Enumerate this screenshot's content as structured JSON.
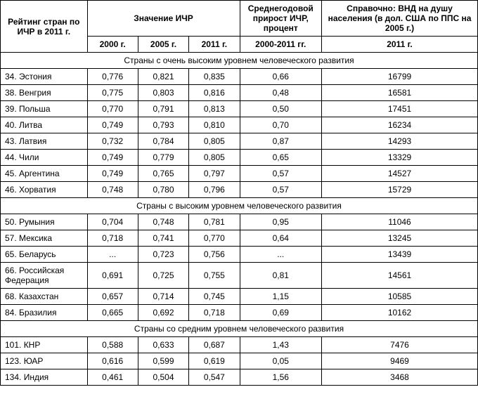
{
  "headers": {
    "rank": "Рейтинг стран по ИЧР в 2011 г.",
    "hdi": "Значение ИЧР",
    "growth": "Среднегодовой прирост ИЧР, процент",
    "gni": "Справочно:\nВНД на душу населения (в дол. США по ППС на 2005 г.)",
    "y2000": "2000 г.",
    "y2005": "2005 г.",
    "y2011": "2011 г.",
    "period": "2000-2011 гг.",
    "gni_year": "2011 г."
  },
  "sections": [
    {
      "title": "Страны с очень высоким уровнем человеческого развития",
      "rows": [
        {
          "country": "34. Эстония",
          "v2000": "0,776",
          "v2005": "0,821",
          "v2011": "0,835",
          "growth": "0,66",
          "gni": "16799"
        },
        {
          "country": "38. Венгрия",
          "v2000": "0,775",
          "v2005": "0,803",
          "v2011": "0,816",
          "growth": "0,48",
          "gni": "16581"
        },
        {
          "country": "39. Польша",
          "v2000": "0,770",
          "v2005": "0,791",
          "v2011": "0,813",
          "growth": "0,50",
          "gni": "17451"
        },
        {
          "country": "40. Литва",
          "v2000": "0,749",
          "v2005": "0,793",
          "v2011": "0,810",
          "growth": "0,70",
          "gni": "16234"
        },
        {
          "country": "43. Латвия",
          "v2000": "0,732",
          "v2005": "0,784",
          "v2011": "0,805",
          "growth": "0,87",
          "gni": "14293"
        },
        {
          "country": "44. Чили",
          "v2000": "0,749",
          "v2005": "0,779",
          "v2011": "0,805",
          "growth": "0,65",
          "gni": "13329"
        },
        {
          "country": "45. Аргентина",
          "v2000": "0,749",
          "v2005": "0,765",
          "v2011": "0,797",
          "growth": "0,57",
          "gni": "14527"
        },
        {
          "country": "46. Хорватия",
          "v2000": "0,748",
          "v2005": "0,780",
          "v2011": "0,796",
          "growth": "0,57",
          "gni": "15729"
        }
      ]
    },
    {
      "title": "Страны с высоким уровнем человеческого развития",
      "rows": [
        {
          "country": "50. Румыния",
          "v2000": "0,704",
          "v2005": "0,748",
          "v2011": "0,781",
          "growth": "0,95",
          "gni": "11046"
        },
        {
          "country": "57. Мексика",
          "v2000": "0,718",
          "v2005": "0,741",
          "v2011": "0,770",
          "growth": "0,64",
          "gni": "13245"
        },
        {
          "country": "65. Беларусь",
          "v2000": "...",
          "v2005": "0,723",
          "v2011": "0,756",
          "growth": "...",
          "gni": "13439"
        },
        {
          "country": "66. Российская Федерация",
          "v2000": "0,691",
          "v2005": "0,725",
          "v2011": "0,755",
          "growth": "0,81",
          "gni": "14561"
        },
        {
          "country": "68. Казахстан",
          "v2000": "0,657",
          "v2005": "0,714",
          "v2011": "0,745",
          "growth": "1,15",
          "gni": "10585"
        },
        {
          "country": "84. Бразилия",
          "v2000": "0,665",
          "v2005": "0,692",
          "v2011": "0,718",
          "growth": "0,69",
          "gni": "10162"
        }
      ]
    },
    {
      "title": "Страны со средним уровнем человеческого развития",
      "rows": [
        {
          "country": "101. КНР",
          "v2000": "0,588",
          "v2005": "0,633",
          "v2011": "0,687",
          "growth": "1,43",
          "gni": "7476"
        },
        {
          "country": "123. ЮАР",
          "v2000": "0,616",
          "v2005": "0,599",
          "v2011": "0,619",
          "growth": "0,05",
          "gni": "9469"
        },
        {
          "country": "134. Индия",
          "v2000": "0,461",
          "v2005": "0,504",
          "v2011": "0,547",
          "growth": "1,56",
          "gni": "3468"
        }
      ]
    }
  ],
  "colwidths": [
    "123px",
    "72px",
    "72px",
    "72px",
    "116px",
    "221px"
  ]
}
